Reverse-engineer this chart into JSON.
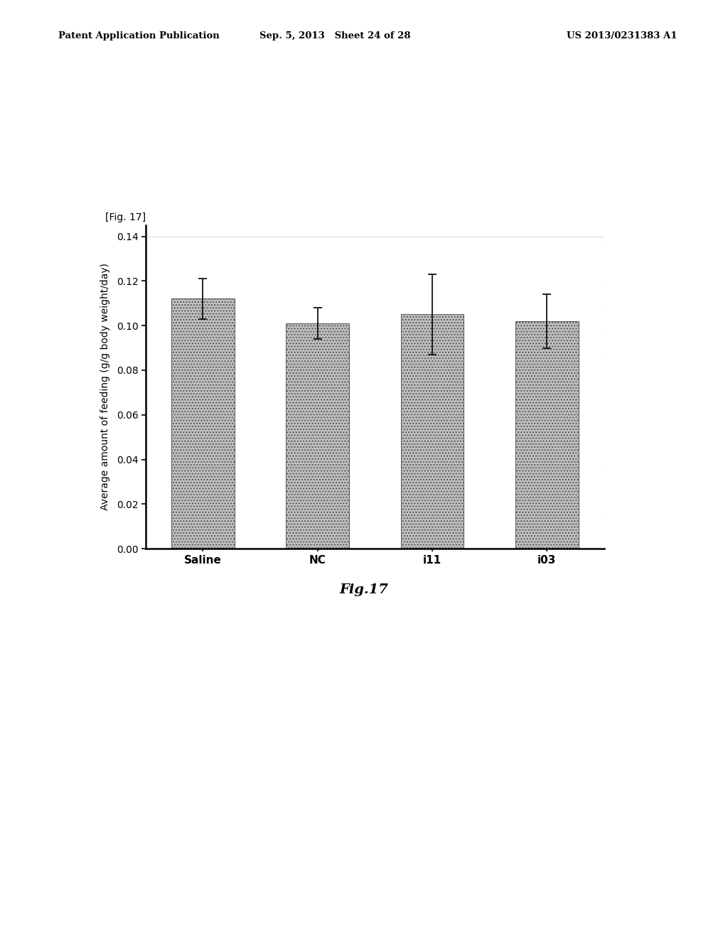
{
  "categories": [
    "Saline",
    "NC",
    "i11",
    "i03"
  ],
  "values": [
    0.112,
    0.101,
    0.105,
    0.102
  ],
  "errors": [
    0.009,
    0.007,
    0.018,
    0.012
  ],
  "bar_color": "#c0c0c0",
  "ylabel": "Average amount of feeding (g/g body weight/day)",
  "ylim": [
    0.0,
    0.145
  ],
  "yticks": [
    0.0,
    0.02,
    0.04,
    0.06,
    0.08,
    0.1,
    0.12,
    0.14
  ],
  "fig_label": "[Fig. 17]",
  "caption": "Fig.17",
  "header_left": "Patent Application Publication",
  "header_center": "Sep. 5, 2013   Sheet 24 of 28",
  "header_right": "US 2013/0231383 A1",
  "background_color": "#ffffff",
  "bar_width": 0.55
}
